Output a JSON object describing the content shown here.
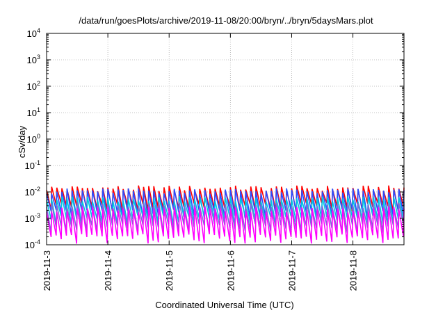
{
  "chart_data": {
    "type": "line",
    "title": "/data/run/goesPlots/archive/2019-11-08/20:00/bryn/../bryn/5daysMars.plot",
    "xlabel": "Coordinated Universal Time (UTC)",
    "ylabel": "cSv/day",
    "y_scale": "log",
    "ylim": [
      0.0001,
      10000
    ],
    "xlim": [
      "2019-11-03T00:00",
      "2019-11-08T20:00"
    ],
    "grid": true,
    "x_ticks": [
      {
        "date": "2019-11-03T00:00",
        "label": "2019-11-3"
      },
      {
        "date": "2019-11-04T00:00",
        "label": "2019-11-4"
      },
      {
        "date": "2019-11-05T00:00",
        "label": "2019-11-5"
      },
      {
        "date": "2019-11-06T00:00",
        "label": "2019-11-6"
      },
      {
        "date": "2019-11-07T00:00",
        "label": "2019-11-7"
      },
      {
        "date": "2019-11-08T00:00",
        "label": "2019-11-8"
      }
    ],
    "y_ticks": [
      {
        "value": 0.0001,
        "base": "10",
        "exp": "-4"
      },
      {
        "value": 0.001,
        "base": "10",
        "exp": "-3"
      },
      {
        "value": 0.01,
        "base": "10",
        "exp": "-2"
      },
      {
        "value": 0.1,
        "base": "10",
        "exp": "-1"
      },
      {
        "value": 1,
        "base": "10",
        "exp": "0"
      },
      {
        "value": 10,
        "base": "10",
        "exp": "1"
      },
      {
        "value": 100,
        "base": "10",
        "exp": "2"
      },
      {
        "value": 1000,
        "base": "10",
        "exp": "3"
      },
      {
        "value": 10000,
        "base": "10",
        "exp": "4"
      }
    ],
    "sawtooth_period_hours": 2,
    "series": [
      {
        "color": "#ff0000",
        "peak": 0.014,
        "trough": 0.0028
      },
      {
        "color": "#2a4dff",
        "peak": 0.011,
        "trough": 0.0016
      },
      {
        "color": "#00c8e0",
        "peak": 0.0055,
        "trough": 0.0009
      },
      {
        "color": "#7d6bd8",
        "peak": 0.0032,
        "trough": 0.00045
      },
      {
        "color": "#ff00ff",
        "peak": 0.0022,
        "trough": 0.00018
      }
    ]
  }
}
